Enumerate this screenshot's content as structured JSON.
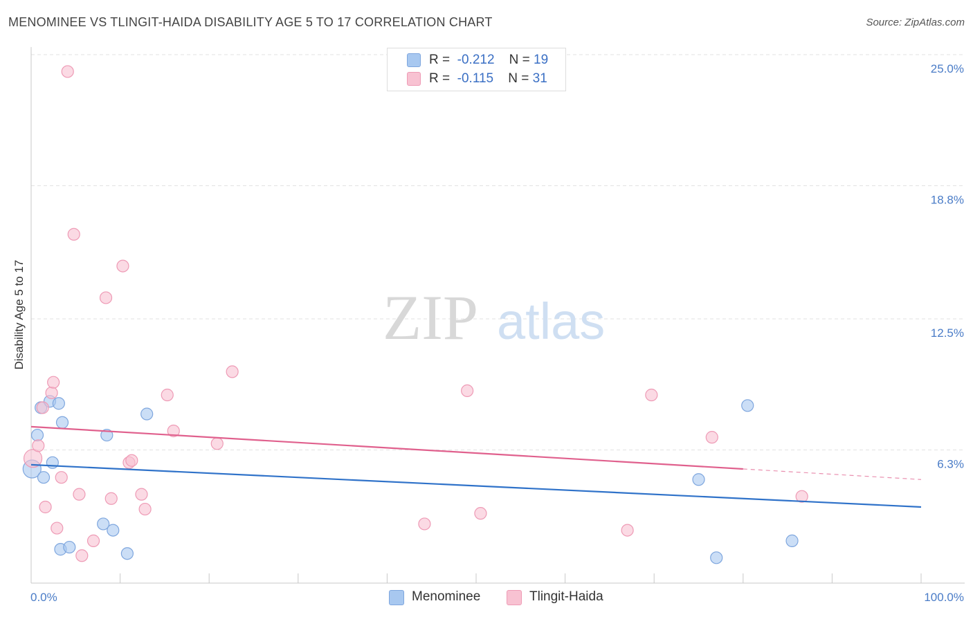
{
  "chart_data": {
    "type": "scatter",
    "title": "MENOMINEE VS TLINGIT-HAIDA DISABILITY AGE 5 TO 17 CORRELATION CHART",
    "source": "Source: ZipAtlas.com",
    "ylabel": "Disability Age 5 to 17",
    "xlabel": "",
    "x_range": [
      0,
      100
    ],
    "y_range": [
      0,
      25
    ],
    "x_tick_labels": [
      "0.0%",
      "100.0%"
    ],
    "y_ticks": [
      {
        "value": 25.0,
        "label": "25.0%"
      },
      {
        "value": 18.8,
        "label": "18.8%"
      },
      {
        "value": 12.5,
        "label": "12.5%"
      },
      {
        "value": 6.3,
        "label": "6.3%"
      }
    ],
    "watermark": {
      "part1": "ZIP",
      "part2": "atlas"
    },
    "series": [
      {
        "name": "Menominee",
        "color": "#a8c8f0",
        "stroke": "#7ea6de",
        "line_color": "#2f72c9",
        "R": "-0.212",
        "N": "19",
        "trend": {
          "x": [
            0,
            100
          ],
          "y": [
            5.6,
            3.6
          ],
          "dashed_from": null
        },
        "points": [
          {
            "x": 0.1,
            "y": 5.4,
            "size": "large"
          },
          {
            "x": 0.7,
            "y": 7.0
          },
          {
            "x": 1.1,
            "y": 8.3
          },
          {
            "x": 1.4,
            "y": 5.0
          },
          {
            "x": 2.1,
            "y": 8.6
          },
          {
            "x": 2.4,
            "y": 5.7
          },
          {
            "x": 3.1,
            "y": 8.5
          },
          {
            "x": 3.5,
            "y": 7.6
          },
          {
            "x": 3.3,
            "y": 1.6
          },
          {
            "x": 4.3,
            "y": 1.7
          },
          {
            "x": 8.1,
            "y": 2.8
          },
          {
            "x": 8.5,
            "y": 7.0
          },
          {
            "x": 9.2,
            "y": 2.5
          },
          {
            "x": 10.8,
            "y": 1.4
          },
          {
            "x": 13.0,
            "y": 8.0
          },
          {
            "x": 75.0,
            "y": 4.9
          },
          {
            "x": 77.0,
            "y": 1.2
          },
          {
            "x": 80.5,
            "y": 8.4
          },
          {
            "x": 85.5,
            "y": 2.0
          }
        ]
      },
      {
        "name": "Tlingit-Haida",
        "color": "#f8c2d2",
        "stroke": "#ee9ab5",
        "line_color": "#e0608d",
        "R": "-0.115",
        "N": "31",
        "trend": {
          "x": [
            0,
            100
          ],
          "y": [
            7.4,
            4.9
          ],
          "dashed_from": 80
        },
        "points": [
          {
            "x": 0.2,
            "y": 5.9,
            "size": "large"
          },
          {
            "x": 0.8,
            "y": 6.5
          },
          {
            "x": 1.3,
            "y": 8.3
          },
          {
            "x": 1.6,
            "y": 3.6
          },
          {
            "x": 2.3,
            "y": 9.0
          },
          {
            "x": 2.5,
            "y": 9.5
          },
          {
            "x": 2.9,
            "y": 2.6
          },
          {
            "x": 3.4,
            "y": 5.0
          },
          {
            "x": 4.1,
            "y": 24.2
          },
          {
            "x": 4.8,
            "y": 16.5
          },
          {
            "x": 5.4,
            "y": 4.2
          },
          {
            "x": 5.7,
            "y": 1.3
          },
          {
            "x": 7.0,
            "y": 2.0
          },
          {
            "x": 8.4,
            "y": 13.5
          },
          {
            "x": 9.0,
            "y": 4.0
          },
          {
            "x": 10.3,
            "y": 15.0
          },
          {
            "x": 11.0,
            "y": 5.7
          },
          {
            "x": 11.3,
            "y": 5.8
          },
          {
            "x": 12.4,
            "y": 4.2
          },
          {
            "x": 12.8,
            "y": 3.5
          },
          {
            "x": 15.3,
            "y": 8.9
          },
          {
            "x": 16.0,
            "y": 7.2
          },
          {
            "x": 20.9,
            "y": 6.6
          },
          {
            "x": 22.6,
            "y": 10.0
          },
          {
            "x": 44.2,
            "y": 2.8
          },
          {
            "x": 49.0,
            "y": 9.1
          },
          {
            "x": 50.5,
            "y": 3.3
          },
          {
            "x": 67.0,
            "y": 2.5
          },
          {
            "x": 69.7,
            "y": 8.9
          },
          {
            "x": 76.5,
            "y": 6.9
          },
          {
            "x": 86.6,
            "y": 4.1
          }
        ]
      }
    ]
  }
}
